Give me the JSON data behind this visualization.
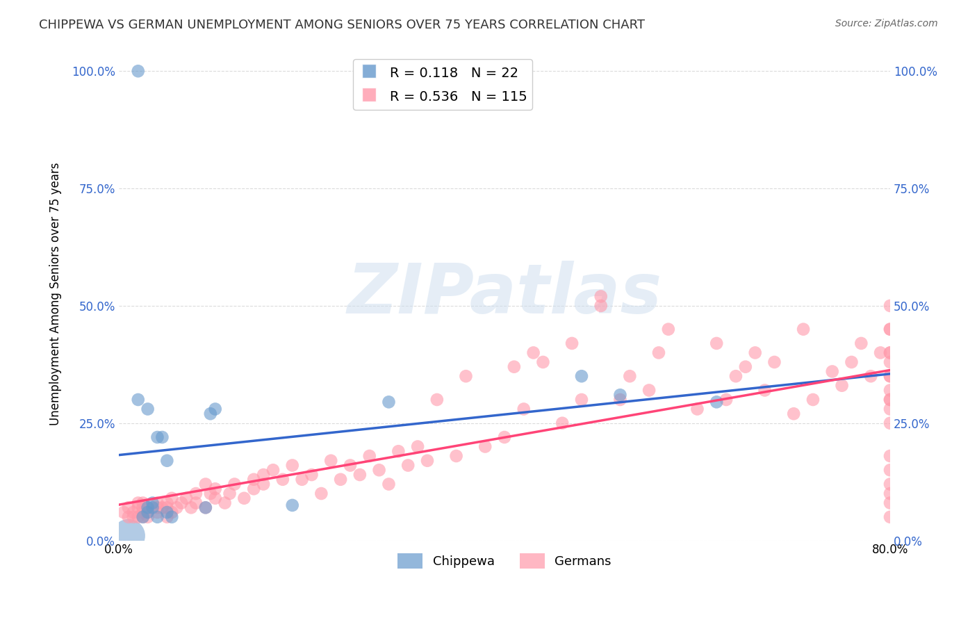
{
  "title": "CHIPPEWA VS GERMAN UNEMPLOYMENT AMONG SENIORS OVER 75 YEARS CORRELATION CHART",
  "source": "Source: ZipAtlas.com",
  "ylabel": "Unemployment Among Seniors over 75 years",
  "xlabel": "",
  "xlim": [
    0.0,
    0.8
  ],
  "ylim": [
    0.0,
    1.05
  ],
  "yticks": [
    0.0,
    0.25,
    0.5,
    0.75,
    1.0
  ],
  "ytick_labels": [
    "0.0%",
    "25.0%",
    "50.0%",
    "75.0%",
    "100.0%"
  ],
  "xticks": [
    0.0,
    0.1,
    0.2,
    0.3,
    0.4,
    0.5,
    0.6,
    0.7,
    0.8
  ],
  "xtick_labels": [
    "0.0%",
    "",
    "",
    "",
    "",
    "",
    "",
    "",
    "80.0%"
  ],
  "chippewa_R": 0.118,
  "chippewa_N": 22,
  "german_R": 0.536,
  "german_N": 115,
  "chippewa_color": "#6699CC",
  "german_color": "#FF99AA",
  "chippewa_line_color": "#3366CC",
  "german_line_color": "#FF4477",
  "watermark": "ZIPatlas",
  "watermark_color": "#CCDDEE",
  "background_color": "#FFFFFF",
  "chippewa_x": [
    0.02,
    0.02,
    0.025,
    0.03,
    0.03,
    0.03,
    0.035,
    0.035,
    0.04,
    0.04,
    0.045,
    0.05,
    0.05,
    0.055,
    0.09,
    0.095,
    0.1,
    0.18,
    0.28,
    0.48,
    0.52,
    0.62
  ],
  "chippewa_y": [
    1.0,
    0.3,
    0.05,
    0.06,
    0.28,
    0.07,
    0.07,
    0.08,
    0.22,
    0.05,
    0.22,
    0.06,
    0.17,
    0.05,
    0.07,
    0.27,
    0.28,
    0.075,
    0.295,
    0.35,
    0.31,
    0.295
  ],
  "chippewa_size": [
    20,
    20,
    20,
    20,
    20,
    20,
    20,
    20,
    20,
    20,
    20,
    20,
    20,
    20,
    20,
    20,
    20,
    20,
    20,
    20,
    20,
    20
  ],
  "german_x": [
    0.005,
    0.01,
    0.01,
    0.015,
    0.015,
    0.02,
    0.02,
    0.02,
    0.025,
    0.025,
    0.025,
    0.025,
    0.03,
    0.03,
    0.03,
    0.04,
    0.04,
    0.04,
    0.045,
    0.05,
    0.05,
    0.05,
    0.055,
    0.055,
    0.06,
    0.065,
    0.07,
    0.075,
    0.08,
    0.08,
    0.09,
    0.09,
    0.095,
    0.1,
    0.1,
    0.11,
    0.115,
    0.12,
    0.13,
    0.14,
    0.14,
    0.15,
    0.15,
    0.16,
    0.17,
    0.18,
    0.19,
    0.2,
    0.21,
    0.22,
    0.23,
    0.24,
    0.25,
    0.26,
    0.27,
    0.28,
    0.29,
    0.3,
    0.31,
    0.32,
    0.33,
    0.35,
    0.36,
    0.38,
    0.4,
    0.41,
    0.42,
    0.43,
    0.44,
    0.46,
    0.47,
    0.48,
    0.5,
    0.5,
    0.52,
    0.53,
    0.55,
    0.56,
    0.57,
    0.6,
    0.62,
    0.63,
    0.64,
    0.65,
    0.66,
    0.67,
    0.68,
    0.7,
    0.71,
    0.72,
    0.74,
    0.75,
    0.76,
    0.77,
    0.78,
    0.79,
    0.8,
    0.8,
    0.8,
    0.8,
    0.8,
    0.8,
    0.8,
    0.8,
    0.8,
    0.8,
    0.8,
    0.8,
    0.8,
    0.8,
    0.8,
    0.8,
    0.8,
    0.8,
    0.8
  ],
  "german_y": [
    0.06,
    0.07,
    0.05,
    0.05,
    0.06,
    0.07,
    0.05,
    0.08,
    0.05,
    0.06,
    0.07,
    0.08,
    0.06,
    0.07,
    0.05,
    0.06,
    0.07,
    0.08,
    0.07,
    0.05,
    0.08,
    0.07,
    0.06,
    0.09,
    0.07,
    0.08,
    0.09,
    0.07,
    0.1,
    0.08,
    0.07,
    0.12,
    0.1,
    0.09,
    0.11,
    0.08,
    0.1,
    0.12,
    0.09,
    0.13,
    0.11,
    0.14,
    0.12,
    0.15,
    0.13,
    0.16,
    0.13,
    0.14,
    0.1,
    0.17,
    0.13,
    0.16,
    0.14,
    0.18,
    0.15,
    0.12,
    0.19,
    0.16,
    0.2,
    0.17,
    0.3,
    0.18,
    0.35,
    0.2,
    0.22,
    0.37,
    0.28,
    0.4,
    0.38,
    0.25,
    0.42,
    0.3,
    0.5,
    0.52,
    0.3,
    0.35,
    0.32,
    0.4,
    0.45,
    0.28,
    0.42,
    0.3,
    0.35,
    0.37,
    0.4,
    0.32,
    0.38,
    0.27,
    0.45,
    0.3,
    0.36,
    0.33,
    0.38,
    0.42,
    0.35,
    0.4,
    0.45,
    0.5,
    0.4,
    0.38,
    0.35,
    0.32,
    0.3,
    0.28,
    0.4,
    0.45,
    0.35,
    0.3,
    0.25,
    0.05,
    0.08,
    0.1,
    0.12,
    0.15,
    0.18
  ]
}
